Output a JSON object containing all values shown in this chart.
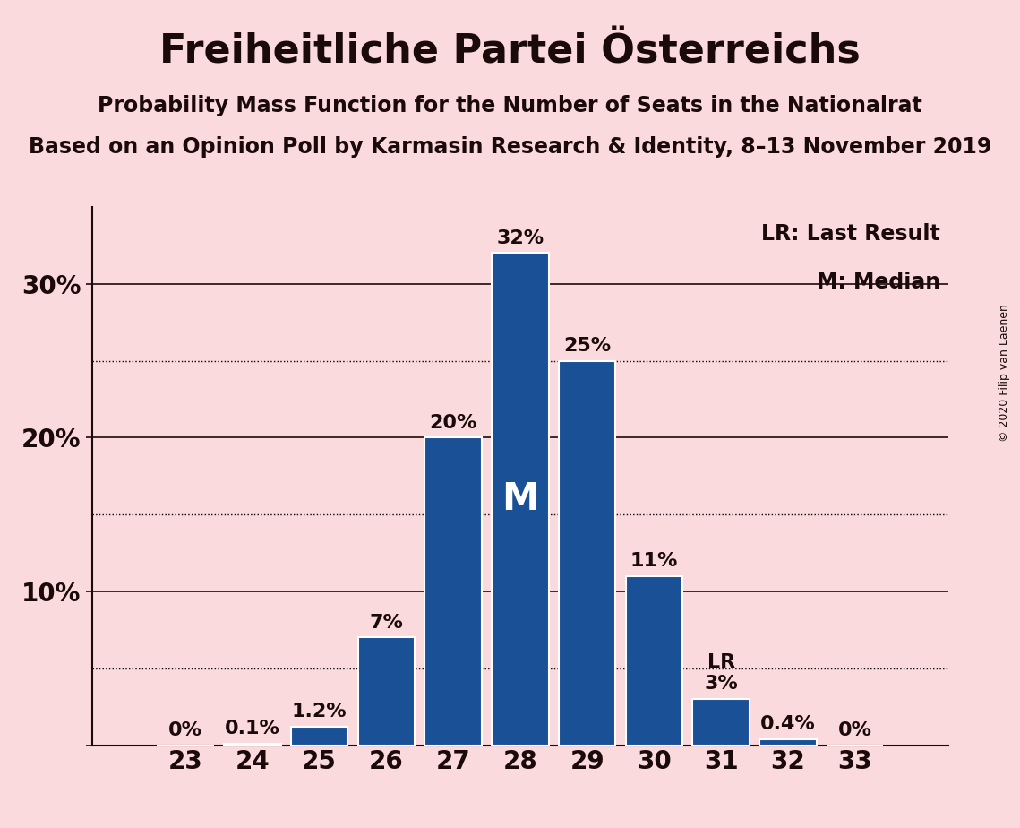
{
  "title": "Freiheitliche Partei Österreichs",
  "subtitle1": "Probability Mass Function for the Number of Seats in the Nationalrat",
  "subtitle2": "Based on an Opinion Poll by Karmasin Research & Identity, 8–13 November 2019",
  "copyright": "© 2020 Filip van Laenen",
  "categories": [
    23,
    24,
    25,
    26,
    27,
    28,
    29,
    30,
    31,
    32,
    33
  ],
  "values": [
    0.0,
    0.1,
    1.2,
    7.0,
    20.0,
    32.0,
    25.0,
    11.0,
    3.0,
    0.4,
    0.0
  ],
  "labels": [
    "0%",
    "0.1%",
    "1.2%",
    "7%",
    "20%",
    "32%",
    "25%",
    "11%",
    "3%",
    "0.4%",
    "0%"
  ],
  "bar_color": "#1a5096",
  "background_color": "#fadadd",
  "text_color": "#1a0a0a",
  "median_bar": 28,
  "last_result_bar": 31,
  "median_label": "M",
  "lr_label": "LR",
  "legend_lr": "LR: Last Result",
  "legend_m": "M: Median",
  "ylim": [
    0,
    35
  ],
  "ytick_labeled": [
    0,
    10,
    20,
    30
  ],
  "ytick_labeled_labels": [
    "",
    "10%",
    "20%",
    "30%"
  ],
  "ytick_dotted": [
    5,
    15,
    25
  ],
  "ytick_solid": [
    10,
    20,
    30
  ],
  "title_fontsize": 32,
  "subtitle_fontsize": 17,
  "bar_label_fontsize": 16,
  "axis_tick_fontsize": 20,
  "legend_fontsize": 17
}
